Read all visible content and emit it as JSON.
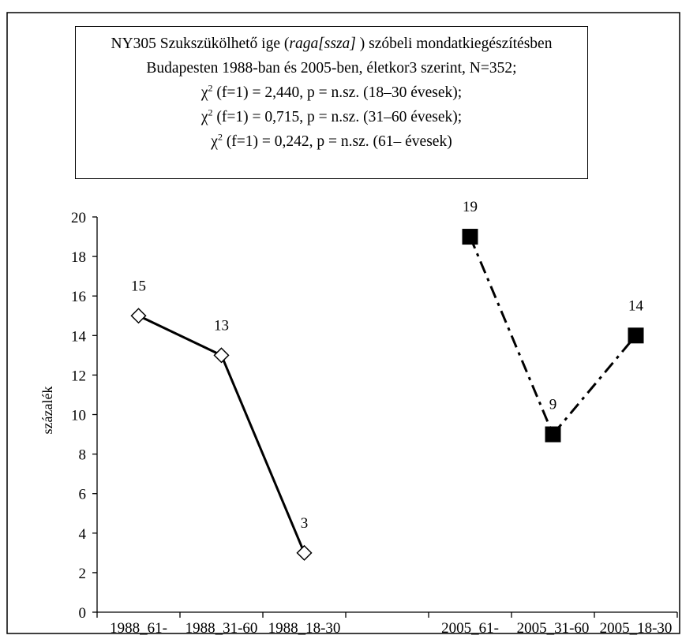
{
  "chart_data": {
    "type": "line",
    "title_parts": [
      "NY305 Szukszükölhető ige (",
      "raga[ssza]",
      " ) szóbeli mondatkiegészítésben",
      "Budapesten 1988-ban és 2005-ben, életkor3 szerint, N=352;",
      "χ",
      "2",
      " (f=1) = 2,440, p = n.sz. (18–30 évesek);",
      "χ",
      "2",
      " (f=1) = 0,715, p = n.sz. (31–60 évesek);",
      "χ",
      "2",
      " (f=1) = 0,242, p = n.sz. (61– évesek)"
    ],
    "y_label": "százalék",
    "categories": [
      "1988_61-",
      "1988_31-60",
      "1988_18-30",
      null,
      "2005_61-",
      "2005_31-60",
      "2005_18-30"
    ],
    "series": [
      {
        "color": "#000000",
        "marker": "diamond",
        "dash": "solid",
        "values": [
          15,
          13,
          3,
          null,
          null,
          null,
          null
        ]
      },
      {
        "color": "#000000",
        "marker": "square",
        "dash": "dashdot",
        "values": [
          null,
          null,
          null,
          null,
          19,
          9,
          14
        ]
      }
    ],
    "ylim": [
      0,
      20
    ],
    "yticks": [
      0,
      2,
      4,
      6,
      8,
      10,
      12,
      14,
      16,
      18,
      20
    ],
    "grid": false
  }
}
